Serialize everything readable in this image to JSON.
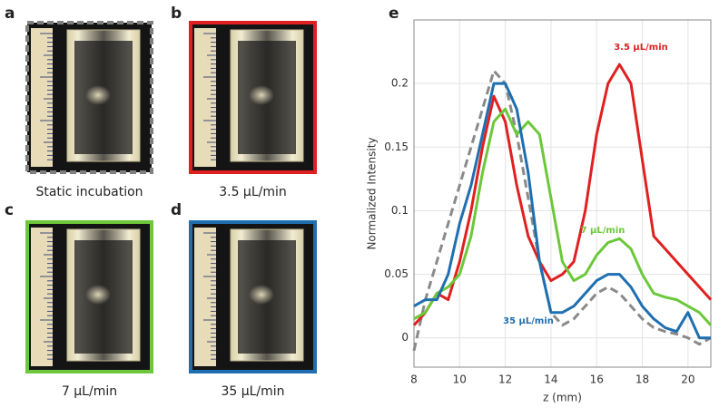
{
  "panels": [
    {
      "label": "a",
      "caption": "Static incubation",
      "border": "#808080",
      "dashed": true
    },
    {
      "label": "b",
      "caption": "3.5 μL/min",
      "border": "#e02020"
    },
    {
      "label": "c",
      "caption": "7 μL/min",
      "border": "#6cc83a"
    },
    {
      "label": "d",
      "caption": "35 μL/min",
      "border": "#1f6fb0"
    }
  ],
  "chart_data": {
    "type": "line",
    "label": "e",
    "xlabel": "z (mm)",
    "ylabel": "Normalized Intensity",
    "x": [
      8,
      8.5,
      9,
      9.5,
      10,
      10.5,
      11,
      11.5,
      12,
      12.5,
      13,
      13.5,
      14,
      14.5,
      15,
      15.5,
      16,
      16.5,
      17,
      17.5,
      18,
      18.5,
      19,
      19.5,
      20,
      20.5,
      21
    ],
    "series": [
      {
        "name": "3.5 μL/min",
        "color": "#e02020",
        "values": [
          0.01,
          0.02,
          0.035,
          0.03,
          0.06,
          0.1,
          0.15,
          0.19,
          0.17,
          0.12,
          0.08,
          0.06,
          0.045,
          0.05,
          0.06,
          0.1,
          0.16,
          0.2,
          0.215,
          0.2,
          0.14,
          0.08,
          0.07,
          0.06,
          0.05,
          0.04,
          0.03
        ]
      },
      {
        "name": "7 μL/min",
        "color": "#6cc83a",
        "values": [
          0.015,
          0.02,
          0.035,
          0.04,
          0.05,
          0.08,
          0.13,
          0.17,
          0.18,
          0.16,
          0.17,
          0.16,
          0.11,
          0.06,
          0.045,
          0.05,
          0.065,
          0.075,
          0.078,
          0.07,
          0.05,
          0.035,
          0.032,
          0.03,
          0.025,
          0.02,
          0.01
        ]
      },
      {
        "name": "35 μL/min",
        "color": "#1f6fb0",
        "values": [
          0.025,
          0.03,
          0.03,
          0.05,
          0.09,
          0.12,
          0.16,
          0.2,
          0.2,
          0.18,
          0.13,
          0.06,
          0.02,
          0.02,
          0.025,
          0.035,
          0.045,
          0.05,
          0.05,
          0.04,
          0.025,
          0.015,
          0.008,
          0.005,
          0.02,
          0.0,
          0.0
        ]
      },
      {
        "color": "#8a8a8a",
        "dashed": true,
        "values": [
          -0.01,
          0.03,
          0.06,
          0.09,
          0.12,
          0.15,
          0.18,
          0.21,
          0.2,
          0.16,
          0.11,
          0.06,
          0.02,
          0.01,
          0.015,
          0.025,
          0.035,
          0.04,
          0.035,
          0.025,
          0.015,
          0.008,
          0.005,
          0.003,
          0.0,
          -0.005,
          0.0
        ]
      }
    ],
    "xlim": [
      8,
      21
    ],
    "ylim": [
      -0.023,
      0.25
    ],
    "xticks": [
      8,
      10,
      12,
      14,
      16,
      18,
      20
    ],
    "yticks": [
      0,
      0.05,
      0.1,
      0.15,
      0.2
    ],
    "grid": true
  }
}
